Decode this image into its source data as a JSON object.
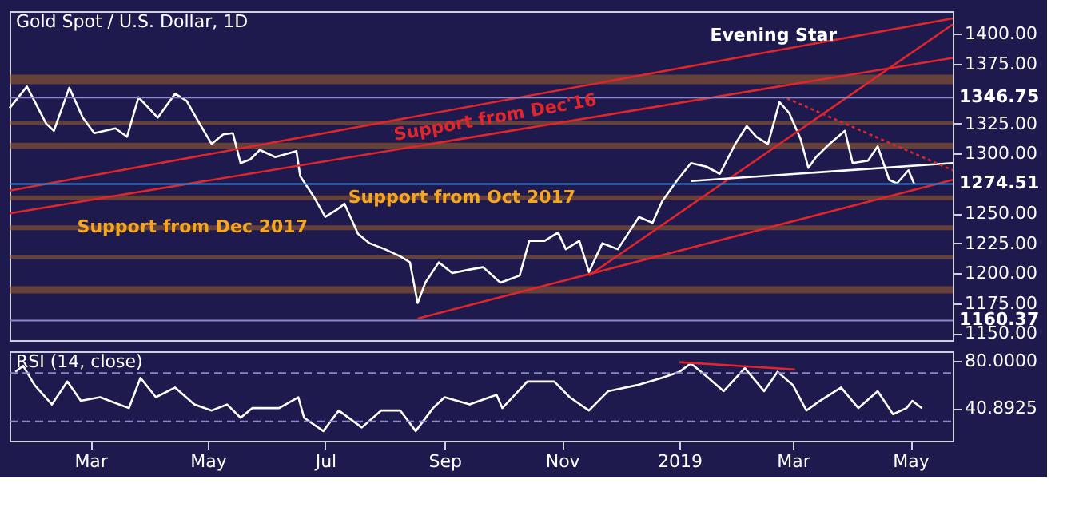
{
  "chart_data": [
    {
      "type": "line",
      "title": "Gold Spot / U.S. Dollar, 1D",
      "x": [
        "2018-01-18",
        "2018-01-27",
        "2018-02-06",
        "2018-02-10",
        "2018-02-18",
        "2018-02-25",
        "2018-03-03",
        "2018-03-14",
        "2018-03-20",
        "2018-03-26",
        "2018-04-05",
        "2018-04-14",
        "2018-04-20",
        "2018-04-26",
        "2018-05-03",
        "2018-05-09",
        "2018-05-14",
        "2018-05-18",
        "2018-05-23",
        "2018-05-28",
        "2018-06-05",
        "2018-06-16",
        "2018-06-18",
        "2018-06-25",
        "2018-07-01",
        "2018-07-07",
        "2018-07-11",
        "2018-07-18",
        "2018-07-24",
        "2018-08-01",
        "2018-08-09",
        "2018-08-14",
        "2018-08-18",
        "2018-08-22",
        "2018-08-29",
        "2018-09-05",
        "2018-09-14",
        "2018-09-21",
        "2018-09-30",
        "2018-10-10",
        "2018-10-15",
        "2018-10-23",
        "2018-10-30",
        "2018-11-03",
        "2018-11-10",
        "2018-11-15",
        "2018-11-22",
        "2018-11-30",
        "2018-12-11",
        "2018-12-18",
        "2018-12-23",
        "2018-12-31",
        "2019-01-07",
        "2019-01-15",
        "2019-01-22",
        "2019-01-30",
        "2019-02-05",
        "2019-02-10",
        "2019-02-16",
        "2019-02-22",
        "2019-02-27",
        "2019-03-05",
        "2019-03-09",
        "2019-03-13",
        "2019-03-20",
        "2019-03-28",
        "2019-04-01",
        "2019-04-09",
        "2019-04-14",
        "2019-04-20",
        "2019-04-24",
        "2019-04-30",
        "2019-05-03"
      ],
      "series": [
        {
          "color": "#ffffff",
          "values": [
            1338,
            1356,
            1325,
            1319,
            1355,
            1330,
            1317,
            1321,
            1314,
            1347,
            1330,
            1350,
            1344,
            1327,
            1308,
            1316,
            1317,
            1292,
            1295,
            1303,
            1297,
            1302,
            1281,
            1264,
            1247,
            1253,
            1258,
            1233,
            1225,
            1220,
            1214,
            1209,
            1175,
            1192,
            1209,
            1200,
            1203,
            1205,
            1192,
            1198,
            1227,
            1227,
            1234,
            1220,
            1227,
            1201,
            1225,
            1220,
            1247,
            1242,
            1260,
            1278,
            1292,
            1289,
            1283,
            1308,
            1323,
            1314,
            1308,
            1343,
            1334,
            1312,
            1288,
            1297,
            1308,
            1319,
            1292,
            1294,
            1306,
            1278,
            1275,
            1286,
            1274.51
          ]
        },
        {
          "type": "line",
          "color": "#e0262b",
          "x": [
            "2018-01-18",
            "2019-05-23"
          ],
          "values": [
            1269,
            1413
          ]
        },
        {
          "type": "line",
          "color": "#e0262b",
          "x": [
            "2018-01-18",
            "2019-05-23"
          ],
          "values": [
            1250,
            1380
          ]
        },
        {
          "type": "line",
          "color": "#e0262b",
          "x": [
            "2018-08-18",
            "2019-05-23"
          ],
          "values": [
            1162,
            1278
          ]
        },
        {
          "type": "line",
          "color": "#e0262b",
          "x": [
            "2018-11-15",
            "2019-05-23"
          ],
          "values": [
            1198,
            1408
          ]
        },
        {
          "type": "line",
          "color": "#ffffff",
          "x": [
            "2019-01-07",
            "2019-05-23"
          ],
          "values": [
            1277,
            1292
          ]
        },
        {
          "type": "line",
          "color": "#e0262b",
          "line_style": "dotted",
          "x": [
            "2019-02-26",
            "2019-05-23"
          ],
          "values": [
            1346,
            1286
          ]
        }
      ],
      "xlim": [
        "2018-01-18",
        "2019-05-23"
      ],
      "ylim": [
        1144,
        1419
      ],
      "yticks": [
        {
          "value": 1150,
          "label": "1150.00"
        },
        {
          "value": 1175,
          "label": "1175.00"
        },
        {
          "value": 1200,
          "label": "1200.00"
        },
        {
          "value": 1225,
          "label": "1225.00"
        },
        {
          "value": 1250,
          "label": "1250.00"
        },
        {
          "value": 1300,
          "label": "1300.00"
        },
        {
          "value": 1325,
          "label": "1325.00"
        },
        {
          "value": 1375,
          "label": "1375.00"
        },
        {
          "value": 1400,
          "label": "1400.00"
        }
      ],
      "bands": [
        {
          "axis": "y",
          "from": 1358,
          "to": 1366,
          "color": "#a0622a"
        },
        {
          "axis": "y",
          "from": 1324,
          "to": 1327,
          "color": "#a0622a"
        },
        {
          "axis": "y",
          "from": 1304,
          "to": 1309,
          "color": "#a0622a"
        },
        {
          "axis": "y",
          "from": 1261,
          "to": 1265,
          "color": "#a0622a"
        },
        {
          "axis": "y",
          "from": 1236,
          "to": 1240,
          "color": "#a0622a"
        },
        {
          "axis": "y",
          "from": 1212,
          "to": 1215,
          "color": "#a0622a"
        },
        {
          "axis": "y",
          "from": 1183,
          "to": 1189,
          "color": "#a0622a"
        }
      ],
      "ref_lines": [
        {
          "axis": "y",
          "value": 1346.75,
          "label": "1346.75",
          "color": "#8c88cc"
        },
        {
          "axis": "y",
          "value": 1274.51,
          "label": "1274.51",
          "color": "#3f86dc"
        },
        {
          "axis": "y",
          "value": 1160.37,
          "label": "1160.37",
          "color": "#8c88cc"
        }
      ],
      "annotations": [
        "Support from Dec'16",
        {
          "text": "Support from Oct 2017",
          "x": "2018-09-10",
          "y": 1263
        },
        {
          "text": "Support from Dec 2017",
          "x": "2018-04-23",
          "y": 1238
        },
        "Evening Star"
      ],
      "tick_labels": "y",
      "grid": false
    },
    {
      "type": "line",
      "title": "RSI (14, close)",
      "x": [
        "2018-01-21",
        "2018-01-25",
        "2018-01-31",
        "2018-02-09",
        "2018-02-17",
        "2018-02-24",
        "2018-03-06",
        "2018-03-21",
        "2018-03-27",
        "2018-04-04",
        "2018-04-14",
        "2018-04-24",
        "2018-05-03",
        "2018-05-11",
        "2018-05-18",
        "2018-05-24",
        "2018-06-07",
        "2018-06-17",
        "2018-06-20",
        "2018-06-30",
        "2018-07-08",
        "2018-07-20",
        "2018-07-30",
        "2018-08-09",
        "2018-08-17",
        "2018-08-26",
        "2018-09-01",
        "2018-09-14",
        "2018-09-28",
        "2018-10-01",
        "2018-10-14",
        "2018-10-28",
        "2018-11-05",
        "2018-11-15",
        "2018-11-25",
        "2018-12-10",
        "2018-12-23",
        "2019-01-01",
        "2019-01-07",
        "2019-01-16",
        "2019-01-24",
        "2019-02-04",
        "2019-02-14",
        "2019-02-21",
        "2019-03-01",
        "2019-03-08",
        "2019-03-15",
        "2019-03-26",
        "2019-04-04",
        "2019-04-14",
        "2019-04-22",
        "2019-04-29",
        "2019-05-02",
        "2019-05-07"
      ],
      "series": [
        {
          "color": "#ffffff",
          "values": [
            71,
            76,
            60,
            44,
            63,
            47,
            50,
            41,
            66,
            50,
            58,
            44,
            39,
            44,
            33,
            41,
            41,
            50,
            33,
            22,
            39,
            25,
            39,
            39,
            22,
            41,
            50,
            44,
            52,
            41,
            63,
            63,
            50,
            39,
            55,
            60,
            66,
            71,
            78,
            66,
            55,
            74,
            55,
            71,
            60,
            39,
            47,
            58,
            41,
            55,
            36,
            41,
            47,
            40.8925
          ]
        },
        {
          "type": "line",
          "color": "#e0262b",
          "x": [
            "2019-01-01",
            "2019-03-02"
          ],
          "values": [
            79,
            73
          ]
        }
      ],
      "xlim": [
        "2018-01-18",
        "2019-05-23"
      ],
      "ylim": [
        14,
        88
      ],
      "yticks": [
        {
          "value": 80,
          "label": "80.0000"
        },
        {
          "value": 40.8925,
          "label": "40.8925"
        }
      ],
      "xticks": [
        {
          "value": "2018-03-01",
          "label": "Mar"
        },
        {
          "value": "2018-05-01",
          "label": "May"
        },
        {
          "value": "2018-07-01",
          "label": "Jul"
        },
        {
          "value": "2018-09-01",
          "label": "Sep"
        },
        {
          "value": "2018-11-01",
          "label": "Nov"
        },
        {
          "value": "2019-01-01",
          "label": "2019"
        },
        {
          "value": "2019-03-01",
          "label": "Mar"
        },
        {
          "value": "2019-05-01",
          "label": "May"
        }
      ],
      "ref_lines": [
        {
          "axis": "y",
          "value": 70,
          "color": "#8c88cc",
          "line_style": "dashed"
        },
        {
          "axis": "y",
          "value": 30,
          "color": "#8c88cc",
          "line_style": "dashed"
        }
      ],
      "grid": false
    }
  ]
}
